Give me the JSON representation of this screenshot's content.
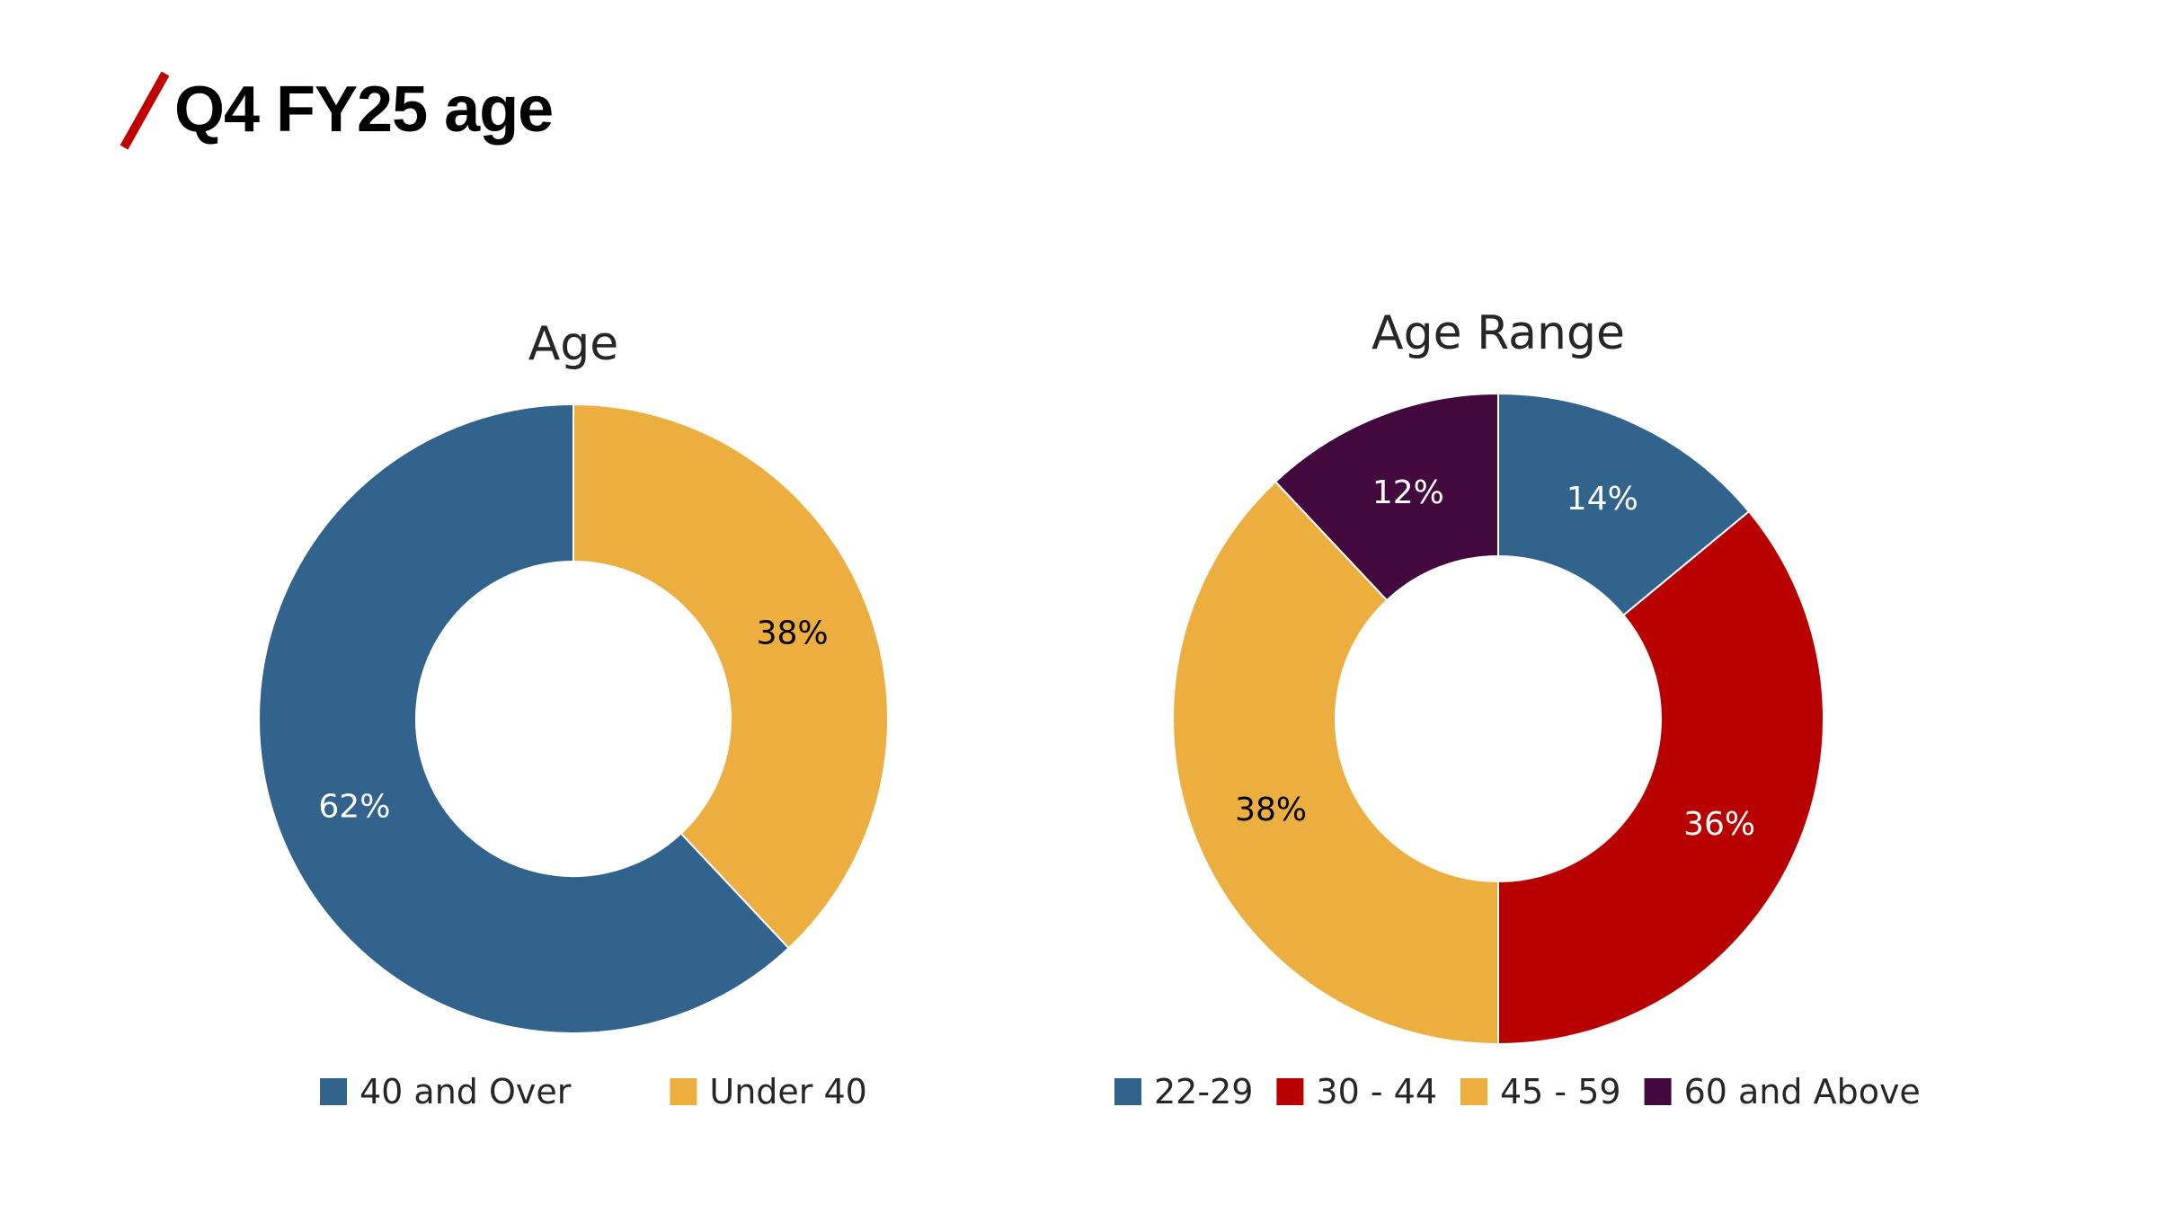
{
  "slide": {
    "title": "Q4 FY25 age",
    "accent_color": "#C00000"
  },
  "chart_data": [
    {
      "type": "donut",
      "title": "Age",
      "categories": [
        "40 and Over",
        "Under 40"
      ],
      "values": [
        62,
        38
      ],
      "labels": [
        "62%",
        "38%"
      ],
      "colors": [
        "#31638C",
        "#ECAE3E"
      ],
      "label_colors": [
        "#FFFFFF",
        "#000000"
      ],
      "legend_position": "bottom",
      "start_angle_deg": 0,
      "direction": "counterclockwise"
    },
    {
      "type": "donut",
      "title": "Age Range",
      "categories": [
        "22-29",
        "30 - 44",
        "45 - 59",
        "60 and Above"
      ],
      "values": [
        14,
        36,
        38,
        12
      ],
      "labels": [
        "14%",
        "36%",
        "38%",
        "12%"
      ],
      "colors": [
        "#31638C",
        "#B90000",
        "#ECAE3E",
        "#43093F"
      ],
      "label_colors": [
        "#FFFFFF",
        "#FFFFFF",
        "#000000",
        "#FFFFFF"
      ],
      "legend_position": "bottom",
      "start_angle_deg": 0,
      "direction": "clockwise"
    }
  ]
}
